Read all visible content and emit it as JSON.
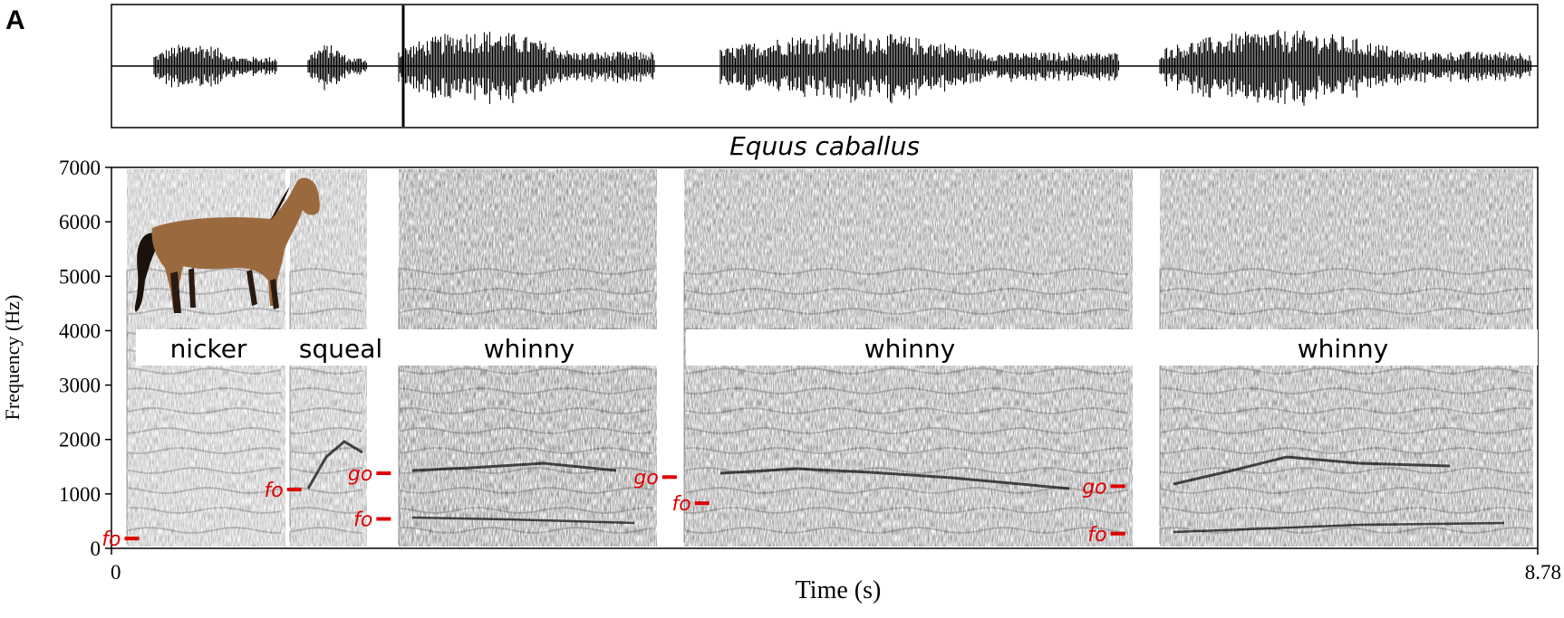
{
  "figure": {
    "panel_letter": "A",
    "species_title": "Equus caballus",
    "x_axis": {
      "label": "Time (s)",
      "min_label": "0",
      "max_label": "8.78",
      "min": 0,
      "max": 8.78
    },
    "y_axis": {
      "label": "Frequency (Hz)",
      "ticks": [
        "0",
        "1000",
        "2000",
        "3000",
        "4000",
        "5000",
        "6000",
        "7000"
      ],
      "min": 0,
      "max": 7000
    },
    "call_labels": [
      "nicker",
      "squeal",
      "whinny",
      "whinny",
      "whinny"
    ],
    "markers": [
      {
        "text": "fo",
        "t": 0.17,
        "f": 180
      },
      {
        "text": "fo",
        "t": 1.17,
        "f": 1080
      },
      {
        "text": "go",
        "t": 1.72,
        "f": 1380
      },
      {
        "text": "fo",
        "t": 1.72,
        "f": 540
      },
      {
        "text": "go",
        "t": 3.48,
        "f": 1310
      },
      {
        "text": "fo",
        "t": 3.68,
        "f": 830
      },
      {
        "text": "go",
        "t": 6.24,
        "f": 1140
      },
      {
        "text": "fo",
        "t": 6.24,
        "f": 270
      }
    ],
    "colors": {
      "marker": "#e00000",
      "ink": "#000000"
    },
    "image_icon": "horse-photo"
  }
}
